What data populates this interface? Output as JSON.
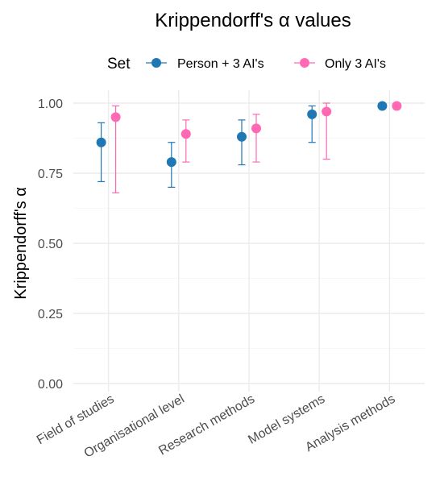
{
  "chart_data": {
    "type": "errorbar",
    "title": "Krippendorff's α values",
    "xlabel": "",
    "ylabel": "Krippendorff's α",
    "ylim": [
      0,
      1
    ],
    "yticks": [
      "0.00",
      "0.25",
      "0.50",
      "0.75",
      "1.00"
    ],
    "categories": [
      "Field of studies",
      "Organisational level",
      "Research methods",
      "Model systems",
      "Analysis methods"
    ],
    "legend": {
      "title": "Set",
      "position": "top"
    },
    "grid": true,
    "series": [
      {
        "name": "Person + 3 AI's",
        "color": "#1f77b4",
        "values": [
          0.86,
          0.79,
          0.88,
          0.96,
          0.99
        ],
        "lower": [
          0.72,
          0.7,
          0.78,
          0.86,
          0.99
        ],
        "upper": [
          0.93,
          0.86,
          0.94,
          0.99,
          0.99
        ]
      },
      {
        "name": "Only 3 AI's",
        "color": "#ff69b4",
        "values": [
          0.95,
          0.89,
          0.91,
          0.97,
          0.99
        ],
        "lower": [
          0.68,
          0.79,
          0.79,
          0.8,
          0.99
        ],
        "upper": [
          0.99,
          0.94,
          0.96,
          1.0,
          0.99
        ]
      }
    ]
  }
}
